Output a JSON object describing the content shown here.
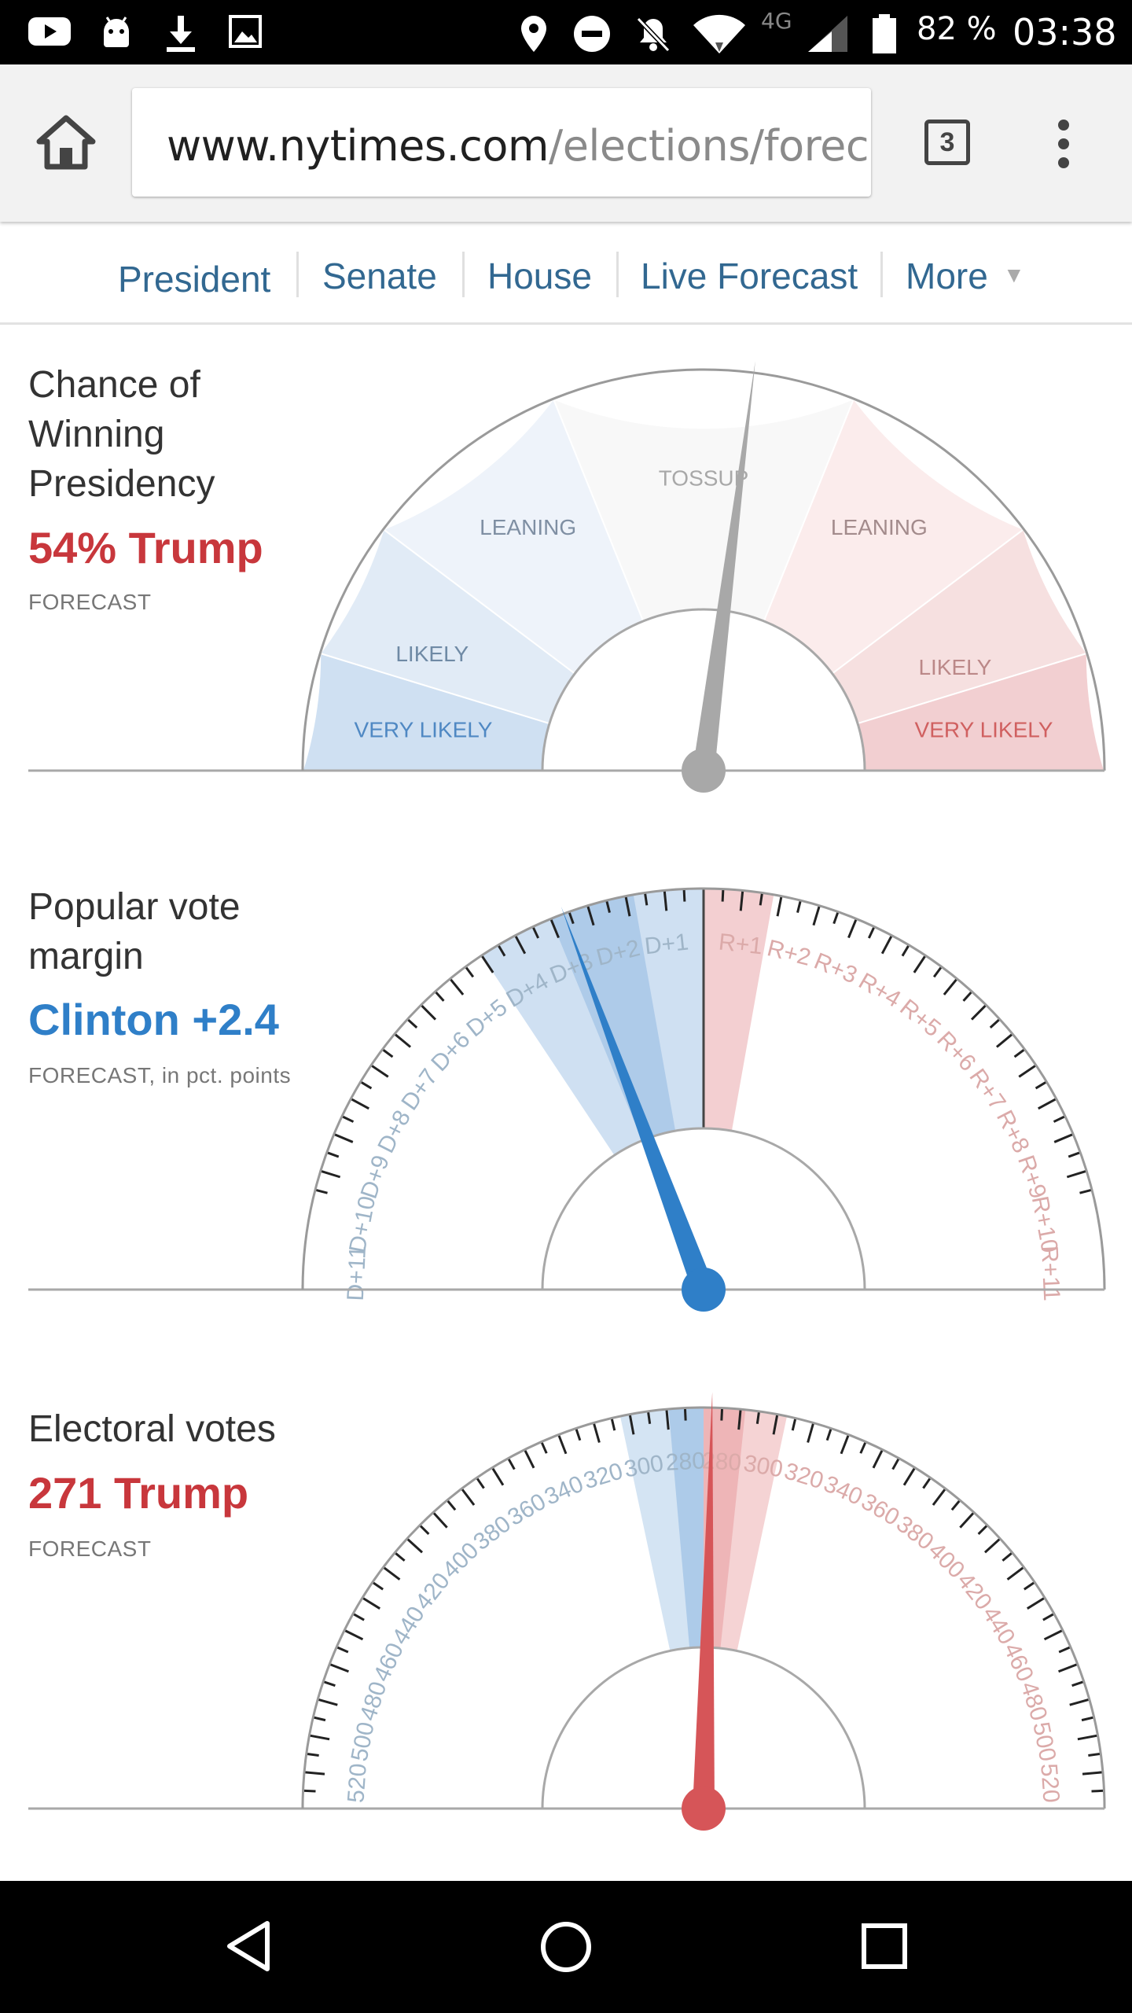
{
  "status_bar": {
    "battery": "82 %",
    "time": "03:38",
    "network": "4G",
    "icons": [
      "youtube-icon",
      "android-icon",
      "download-icon",
      "image-icon",
      "location-icon",
      "do-not-disturb-icon",
      "notifications-off-icon",
      "wifi-icon",
      "signal-icon",
      "battery-icon"
    ]
  },
  "browser": {
    "url_domain": "www.nytimes.com",
    "url_path": "/elections/forecast",
    "tab_count": "3"
  },
  "nav": {
    "items": [
      "President",
      "Senate",
      "House",
      "Live Forecast",
      "More"
    ]
  },
  "colors": {
    "nyt_blue": "#326891",
    "dem_blue": "#2f7fc8",
    "rep_red": "#d0383d",
    "needle_gray": "#a8a8a8"
  },
  "sections": {
    "chance": {
      "title": "Chance of Winning Presidency",
      "value": "54% Trump",
      "value_color": "#c8373c",
      "note": "FORECAST",
      "gauge_labels": {
        "tossup": "TOSSUP",
        "leaning_d": "LEANING",
        "leaning_r": "LEANING",
        "likely_d": "LIKELY",
        "likely_r": "LIKELY",
        "very_likely_d": "VERY LIKELY",
        "very_likely_r": "VERY LIKELY"
      },
      "trump_probability": 0.54
    },
    "popular": {
      "title": "Popular vote margin",
      "value": "Clinton +2.4",
      "value_color": "#2f7fc8",
      "note": "FORECAST, in pct. points",
      "d_ticks": [
        "D+1",
        "D+2",
        "D+3",
        "D+4",
        "D+5",
        "D+6",
        "D+7",
        "D+8",
        "D+9",
        "D+10",
        "D+11"
      ],
      "r_ticks": [
        "R+1",
        "R+2",
        "R+3",
        "R+4",
        "R+5",
        "R+6",
        "R+7",
        "R+8",
        "R+9",
        "R+10",
        "R+11"
      ],
      "margin_d": 2.4
    },
    "electoral": {
      "title": "Electoral votes",
      "value": "271 Trump",
      "value_color": "#c8373c",
      "note": "FORECAST",
      "d_ticks": [
        "280",
        "300",
        "320",
        "340",
        "360",
        "380",
        "400",
        "420",
        "440",
        "460",
        "480",
        "500",
        "520"
      ],
      "r_ticks": [
        "280",
        "300",
        "320",
        "340",
        "360",
        "380",
        "400",
        "420",
        "440",
        "460",
        "480",
        "500",
        "520"
      ],
      "trump_votes": 271
    }
  }
}
